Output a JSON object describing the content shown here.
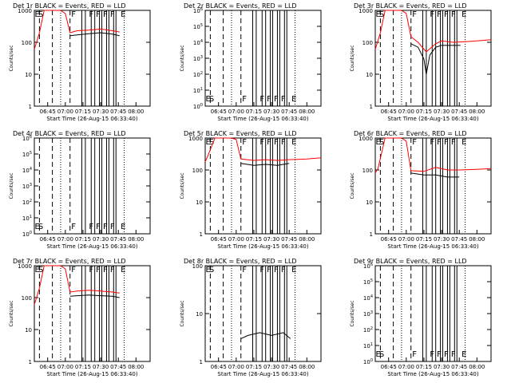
{
  "figure": {
    "time_axis_label": "Start Time (26-Aug-15 06:33:40)",
    "y_axis_label": "Counts/sec",
    "x_ticks": [
      "06:45",
      "07:00",
      "07:15",
      "07:30",
      "07:45",
      "08:00"
    ],
    "colors": {
      "events": "#000000",
      "lld": "#ff0000",
      "axes": "#000000"
    }
  },
  "chart_data": [
    {
      "type": "line",
      "title": "Det 1r BLACK = Events, RED = LLD",
      "x": [
        "06:45",
        "07:00",
        "07:15",
        "07:30",
        "07:45",
        "08:00"
      ],
      "xlim": [
        "06:33:40",
        "08:12:00"
      ],
      "y_scale": "log",
      "ylim": [
        1,
        1000
      ],
      "y_ticks": [
        "1",
        "10",
        "100",
        "1000"
      ],
      "markers": [
        "E",
        "S",
        "F",
        "F",
        "F",
        "F",
        "F",
        "E"
      ],
      "series": [
        {
          "name": "Events",
          "color": "#000000",
          "x": [
            "07:04",
            "07:10",
            "07:20",
            "07:30",
            "07:40",
            "07:46"
          ],
          "y": [
            160,
            170,
            185,
            200,
            180,
            160
          ]
        },
        {
          "name": "LLD",
          "color": "#ff0000",
          "x": [
            "06:33:40",
            "06:38",
            "06:42",
            "06:50",
            "06:56",
            "07:00",
            "07:04",
            "07:10",
            "07:20",
            "07:30",
            "07:40",
            "07:46"
          ],
          "y": [
            60,
            200,
            1000,
            1000,
            1000,
            800,
            200,
            230,
            240,
            260,
            230,
            210
          ]
        }
      ]
    },
    {
      "type": "line",
      "title": "Det 2r BLACK = Events, RED = LLD",
      "x": [
        "06:45",
        "07:00",
        "07:15",
        "07:30",
        "07:45",
        "08:00"
      ],
      "xlim": [
        "06:33:40",
        "08:12:00"
      ],
      "y_scale": "log",
      "ylim": [
        1,
        1000000
      ],
      "y_ticks": [
        "10^0",
        "10^1",
        "10^2",
        "10^3",
        "10^4",
        "10^5",
        "10^6"
      ],
      "markers": [
        "E",
        "S",
        "F",
        "F",
        "F",
        "F",
        "F",
        "E"
      ],
      "series": []
    },
    {
      "type": "line",
      "title": "Det 3r BLACK = Events, RED = LLD",
      "x": [
        "06:45",
        "07:00",
        "07:15",
        "07:30",
        "07:45",
        "08:00"
      ],
      "xlim": [
        "06:33:40",
        "08:12:00"
      ],
      "y_scale": "log",
      "ylim": [
        1,
        1000
      ],
      "y_ticks": [
        "1",
        "10",
        "100",
        "1000"
      ],
      "markers": [
        "E",
        "S",
        "F",
        "F",
        "F",
        "F",
        "F",
        "E"
      ],
      "series": [
        {
          "name": "Events",
          "color": "#000000",
          "x": [
            "07:04",
            "07:10",
            "07:15",
            "07:17",
            "07:20",
            "07:25",
            "07:30",
            "07:40",
            "07:46"
          ],
          "y": [
            90,
            70,
            30,
            10,
            40,
            70,
            80,
            80,
            80
          ]
        },
        {
          "name": "LLD",
          "color": "#ff0000",
          "x": [
            "06:33:40",
            "06:38",
            "06:42",
            "06:50",
            "06:56",
            "07:00",
            "07:04",
            "07:10",
            "07:17",
            "07:25",
            "07:30",
            "07:40",
            "07:50",
            "08:00",
            "08:12"
          ],
          "y": [
            60,
            200,
            1000,
            1000,
            1000,
            800,
            150,
            100,
            50,
            90,
            110,
            100,
            105,
            110,
            120
          ]
        }
      ]
    },
    {
      "type": "line",
      "title": "Det 4r BLACK = Events, RED = LLD",
      "x": [
        "06:45",
        "07:00",
        "07:15",
        "07:30",
        "07:45",
        "08:00"
      ],
      "xlim": [
        "06:33:40",
        "08:12:00"
      ],
      "y_scale": "log",
      "ylim": [
        1,
        1000000
      ],
      "y_ticks": [
        "10^0",
        "10^1",
        "10^2",
        "10^3",
        "10^4",
        "10^5",
        "10^6"
      ],
      "markers": [
        "E",
        "S",
        "F",
        "F",
        "F",
        "F",
        "F",
        "E"
      ],
      "series": []
    },
    {
      "type": "line",
      "title": "Det 5r BLACK = Events, RED = LLD",
      "x": [
        "06:45",
        "07:00",
        "07:15",
        "07:30",
        "07:45",
        "08:00"
      ],
      "xlim": [
        "06:33:40",
        "08:12:00"
      ],
      "y_scale": "log",
      "ylim": [
        1,
        1000
      ],
      "y_ticks": [
        "1",
        "10",
        "100",
        "1000"
      ],
      "markers": [
        "E",
        "S",
        "F",
        "F",
        "F",
        "F",
        "F",
        "E"
      ],
      "series": [
        {
          "name": "Events",
          "color": "#000000",
          "x": [
            "07:04",
            "07:15",
            "07:25",
            "07:35",
            "07:45"
          ],
          "y": [
            160,
            140,
            150,
            140,
            160
          ]
        },
        {
          "name": "LLD",
          "color": "#ff0000",
          "x": [
            "06:33:40",
            "06:36",
            "06:42",
            "06:50",
            "06:56",
            "07:00",
            "07:04",
            "07:15",
            "07:25",
            "07:35",
            "07:45",
            "08:00",
            "08:12"
          ],
          "y": [
            180,
            280,
            1000,
            1000,
            1000,
            900,
            220,
            200,
            210,
            200,
            210,
            220,
            240
          ]
        }
      ]
    },
    {
      "type": "line",
      "title": "Det 6r BLACK = Events, RED = LLD",
      "x": [
        "06:45",
        "07:00",
        "07:15",
        "07:30",
        "07:45",
        "08:00"
      ],
      "xlim": [
        "06:33:40",
        "08:12:00"
      ],
      "y_scale": "log",
      "ylim": [
        1,
        1000
      ],
      "y_ticks": [
        "1",
        "10",
        "100",
        "1000"
      ],
      "markers": [
        "E",
        "S",
        "F",
        "F",
        "F",
        "F",
        "F",
        "E"
      ],
      "series": [
        {
          "name": "Events",
          "color": "#000000",
          "x": [
            "07:04",
            "07:15",
            "07:25",
            "07:35",
            "07:45"
          ],
          "y": [
            80,
            70,
            70,
            60,
            60
          ]
        },
        {
          "name": "LLD",
          "color": "#ff0000",
          "x": [
            "06:33:40",
            "06:36",
            "06:42",
            "06:50",
            "06:56",
            "07:00",
            "07:04",
            "07:15",
            "07:25",
            "07:35",
            "07:45",
            "08:00",
            "08:12"
          ],
          "y": [
            80,
            110,
            1000,
            1000,
            1000,
            800,
            95,
            90,
            120,
            100,
            100,
            105,
            110
          ]
        }
      ]
    },
    {
      "type": "line",
      "title": "Det 7r BLACK = Events, RED = LLD",
      "x": [
        "06:45",
        "07:00",
        "07:15",
        "07:30",
        "07:45",
        "08:00"
      ],
      "xlim": [
        "06:33:40",
        "08:12:00"
      ],
      "y_scale": "log",
      "ylim": [
        1,
        1000
      ],
      "y_ticks": [
        "1",
        "10",
        "100",
        "1000"
      ],
      "markers": [
        "E",
        "S",
        "F",
        "F",
        "F",
        "F",
        "F",
        "E"
      ],
      "series": [
        {
          "name": "Events",
          "color": "#000000",
          "x": [
            "07:04",
            "07:10",
            "07:20",
            "07:30",
            "07:40",
            "07:46"
          ],
          "y": [
            110,
            115,
            120,
            115,
            110,
            100
          ]
        },
        {
          "name": "LLD",
          "color": "#ff0000",
          "x": [
            "06:33:40",
            "06:38",
            "06:42",
            "06:50",
            "06:56",
            "07:00",
            "07:04",
            "07:10",
            "07:20",
            "07:30",
            "07:40",
            "07:46"
          ],
          "y": [
            60,
            200,
            1000,
            1000,
            1000,
            800,
            150,
            160,
            170,
            160,
            150,
            140
          ]
        }
      ]
    },
    {
      "type": "line",
      "title": "Det 8r BLACK = Events, RED = LLD",
      "x": [
        "06:45",
        "07:00",
        "07:15",
        "07:30",
        "07:45",
        "08:00"
      ],
      "xlim": [
        "06:33:40",
        "08:12:00"
      ],
      "y_scale": "log",
      "ylim": [
        1,
        100
      ],
      "y_ticks": [
        "1",
        "10",
        "100"
      ],
      "markers": [
        "E",
        "S",
        "F",
        "F",
        "F",
        "F",
        "F",
        "E"
      ],
      "series": [
        {
          "name": "Events",
          "color": "#000000",
          "x": [
            "07:04",
            "07:10",
            "07:20",
            "07:30",
            "07:40",
            "07:46"
          ],
          "y": [
            3,
            3.5,
            4,
            3.5,
            4,
            3
          ]
        }
      ]
    },
    {
      "type": "line",
      "title": "Det 9r BLACK = Events, RED = LLD",
      "x": [
        "06:45",
        "07:00",
        "07:15",
        "07:30",
        "07:45",
        "08:00"
      ],
      "xlim": [
        "06:33:40",
        "08:12:00"
      ],
      "y_scale": "log",
      "ylim": [
        1,
        1000000
      ],
      "y_ticks": [
        "10^0",
        "10^1",
        "10^2",
        "10^3",
        "10^4",
        "10^5",
        "10^6"
      ],
      "markers": [
        "E",
        "S",
        "F",
        "F",
        "F",
        "F",
        "F",
        "E"
      ],
      "series": []
    }
  ]
}
